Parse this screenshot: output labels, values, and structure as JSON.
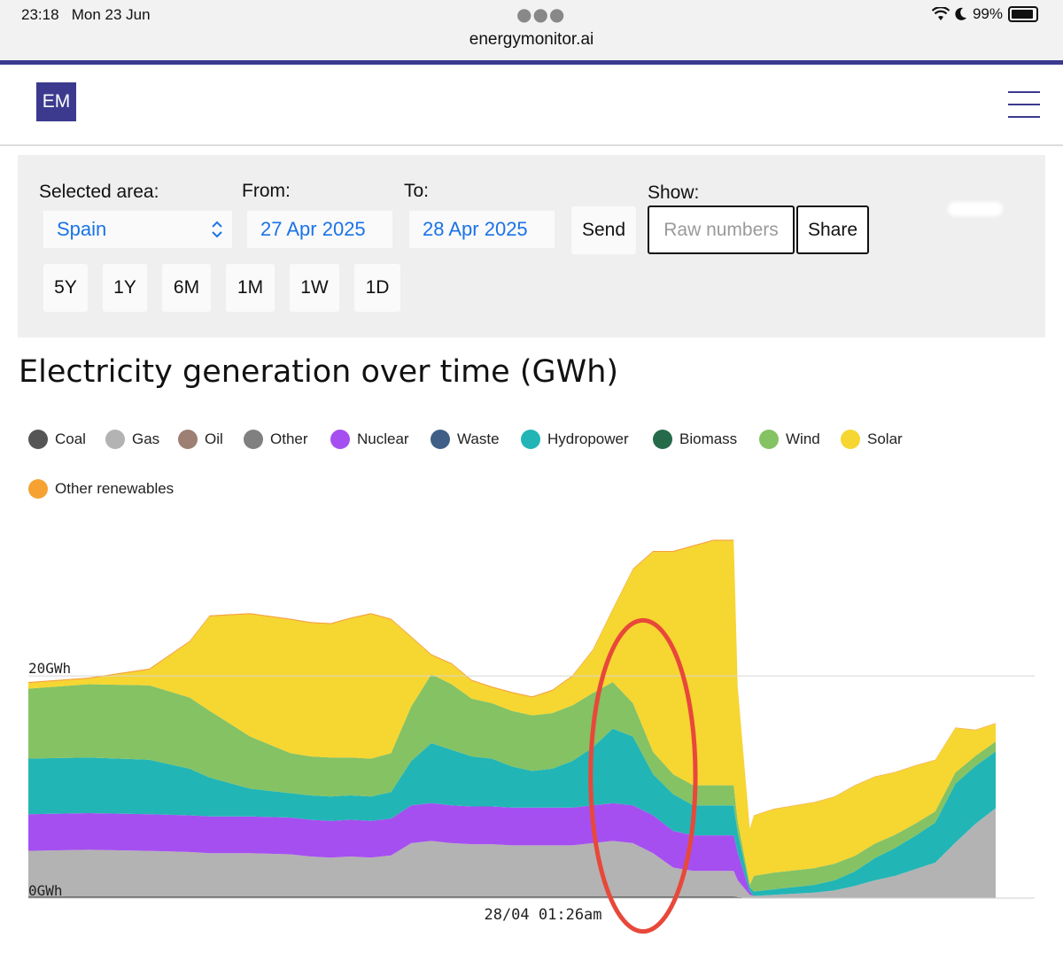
{
  "status_bar": {
    "time": "23:18",
    "date": "Mon 23 Jun",
    "url": "energymonitor.ai",
    "battery": "99%"
  },
  "header": {
    "logo": "EM"
  },
  "controls": {
    "area_label": "Selected area:",
    "area_value": "Spain",
    "from_label": "From:",
    "from_value": "27 Apr 2025",
    "to_label": "To:",
    "to_value": "28 Apr 2025",
    "send_label": "Send",
    "show_label": "Show:",
    "raw_label": "Raw numbers",
    "share_label": "Share",
    "ranges": [
      "5Y",
      "1Y",
      "6M",
      "1M",
      "1W",
      "1D"
    ]
  },
  "chart_data": {
    "type": "area",
    "stacked": true,
    "title": "Electricity generation over time (GWh)",
    "legend": [
      {
        "name": "Coal",
        "color": "#555555"
      },
      {
        "name": "Gas",
        "color": "#b3b3b3"
      },
      {
        "name": "Oil",
        "color": "#9e7f73"
      },
      {
        "name": "Other",
        "color": "#808080"
      },
      {
        "name": "Nuclear",
        "color": "#a64ff0"
      },
      {
        "name": "Waste",
        "color": "#3f5f87"
      },
      {
        "name": "Hydropower",
        "color": "#22b5b5"
      },
      {
        "name": "Biomass",
        "color": "#256b4a"
      },
      {
        "name": "Wind",
        "color": "#84c264"
      },
      {
        "name": "Solar",
        "color": "#f6d631"
      },
      {
        "name": "Other renewables",
        "color": "#f5a233"
      }
    ],
    "y_ticks": [
      {
        "value": 0,
        "label": "0GWh"
      },
      {
        "value": 20,
        "label": "20GWh"
      }
    ],
    "ylim": [
      0,
      33
    ],
    "x_range": [
      0,
      48
    ],
    "cursor_label": "28/04 01:26am",
    "x": [
      0,
      3,
      6,
      8,
      9,
      11,
      13,
      14,
      15,
      16,
      17,
      18,
      19,
      20,
      21,
      22,
      23,
      24,
      25,
      26,
      27,
      28,
      29,
      30,
      31,
      32,
      33,
      34,
      35,
      35.2,
      35.8,
      36,
      37,
      38,
      39,
      40,
      41,
      42,
      43,
      44,
      45,
      46,
      47,
      48
    ],
    "series": [
      {
        "name": "Coal",
        "values": [
          0.15,
          0.15,
          0.15,
          0.15,
          0.15,
          0.15,
          0.15,
          0.15,
          0.15,
          0.15,
          0.15,
          0.15,
          0.15,
          0.15,
          0.15,
          0.15,
          0.15,
          0.15,
          0.15,
          0.15,
          0.15,
          0.15,
          0.15,
          0.15,
          0.15,
          0.15,
          0.15,
          0.15,
          0.15,
          0.1,
          0,
          0,
          0,
          0,
          0,
          0,
          0,
          0,
          0,
          0,
          0,
          0,
          0,
          0
        ]
      },
      {
        "name": "Gas",
        "values": [
          4.1,
          4.2,
          4.1,
          4.0,
          3.9,
          3.9,
          3.8,
          3.6,
          3.5,
          3.6,
          3.5,
          3.7,
          4.8,
          5.0,
          4.8,
          4.7,
          4.7,
          4.6,
          4.6,
          4.6,
          4.6,
          4.8,
          5.0,
          4.8,
          3.9,
          2.6,
          2.3,
          2.3,
          2.3,
          1.5,
          0.3,
          0.2,
          0.3,
          0.4,
          0.5,
          0.7,
          1.1,
          1.6,
          2.0,
          2.6,
          3.2,
          5.0,
          6.7,
          8.1
        ]
      },
      {
        "name": "Nuclear",
        "values": [
          3.3,
          3.3,
          3.3,
          3.3,
          3.3,
          3.3,
          3.3,
          3.3,
          3.3,
          3.3,
          3.3,
          3.3,
          3.4,
          3.4,
          3.4,
          3.4,
          3.4,
          3.4,
          3.4,
          3.4,
          3.4,
          3.4,
          3.4,
          3.4,
          3.4,
          3.3,
          3.2,
          3.2,
          3.2,
          2.5,
          0.3,
          0,
          0,
          0,
          0,
          0,
          0,
          0,
          0,
          0,
          0,
          0,
          0,
          0
        ]
      },
      {
        "name": "Hydropower",
        "values": [
          5.0,
          5.0,
          4.9,
          4.2,
          3.5,
          2.5,
          2.2,
          2.2,
          2.2,
          2.2,
          2.2,
          2.4,
          4.0,
          5.4,
          5.0,
          4.5,
          4.3,
          3.7,
          3.3,
          3.5,
          4.2,
          5.2,
          6.7,
          6.2,
          3.7,
          3.3,
          2.7,
          2.7,
          2.7,
          1.8,
          0.4,
          0.4,
          0.5,
          0.6,
          0.7,
          0.9,
          1.3,
          2.0,
          2.5,
          3.0,
          3.6,
          5.3,
          5.2,
          5.1
        ]
      },
      {
        "name": "Wind",
        "values": [
          6.3,
          6.6,
          6.7,
          6.4,
          6.0,
          4.7,
          3.6,
          3.5,
          3.5,
          3.4,
          3.4,
          3.5,
          4.9,
          6.2,
          5.9,
          5.2,
          5.0,
          5.0,
          5.0,
          5.0,
          5.0,
          4.9,
          4.2,
          3.0,
          2.0,
          1.8,
          1.8,
          1.8,
          1.8,
          1.0,
          0.2,
          1.4,
          1.5,
          1.5,
          1.5,
          1.5,
          1.4,
          1.3,
          1.2,
          1.1,
          1.0,
          1.0,
          0.9,
          0.9
        ]
      },
      {
        "name": "Solar",
        "values": [
          0.5,
          0.5,
          1.4,
          5.0,
          8.5,
          11.0,
          12.0,
          12.0,
          12.0,
          12.5,
          13.0,
          12.0,
          6.2,
          1.7,
          1.8,
          1.6,
          1.4,
          1.6,
          1.6,
          2.0,
          2.6,
          3.8,
          6.5,
          12.0,
          18.0,
          20.0,
          21.5,
          22.0,
          22.0,
          12.0,
          5.0,
          5.4,
          5.7,
          5.8,
          5.9,
          6.0,
          6.3,
          6.0,
          5.6,
          5.2,
          4.6,
          4.0,
          2.3,
          1.6
        ]
      },
      {
        "name": "Other renewables",
        "values": [
          0.1,
          0.1,
          0.1,
          0.1,
          0.1,
          0.1,
          0.1,
          0.1,
          0.1,
          0.1,
          0.1,
          0.1,
          0.1,
          0.1,
          0.1,
          0.1,
          0.1,
          0.1,
          0.1,
          0.1,
          0.1,
          0.1,
          0.1,
          0.1,
          0.1,
          0.1,
          0.1,
          0.1,
          0.1,
          0.1,
          0.05,
          0.05,
          0.05,
          0.05,
          0.05,
          0.05,
          0.05,
          0.05,
          0.05,
          0.05,
          0.05,
          0.05,
          0.05,
          0.05
        ]
      }
    ],
    "annotation": {
      "type": "ellipse",
      "color": "#e8483a",
      "cx": 30.5,
      "cy": 11,
      "rx": 2.6,
      "ry": 14
    }
  }
}
